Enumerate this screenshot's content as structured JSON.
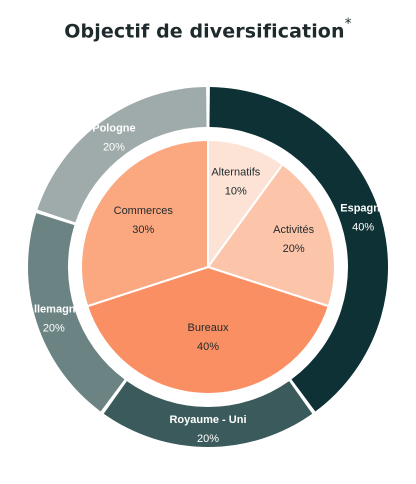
{
  "chart_data": [
    {
      "type": "pie",
      "title": "Objectif de diversification",
      "title_mark": "*",
      "ring": "outer",
      "slices": [
        {
          "label": "Espagne",
          "value": 40,
          "value_label": "40%",
          "color": "#0d3134",
          "text_color": "#ffffff"
        },
        {
          "label": "Royaume - Uni",
          "value": 20,
          "value_label": "20%",
          "color": "#3b5a5b",
          "text_color": "#ffffff"
        },
        {
          "label": "Allemagne",
          "value": 20,
          "value_label": "20%",
          "color": "#6c8384",
          "text_color": "#ffffff"
        },
        {
          "label": "Pologne",
          "value": 20,
          "value_label": "20%",
          "color": "#9eabaa",
          "text_color": "#ffffff"
        }
      ]
    },
    {
      "type": "pie",
      "ring": "inner",
      "slices": [
        {
          "label": "Alternatifs",
          "value": 10,
          "value_label": "10%",
          "color": "#fde2d6",
          "text_color": "#1f2a2c"
        },
        {
          "label": "Activités",
          "value": 20,
          "value_label": "20%",
          "color": "#fcc4a8",
          "text_color": "#1f2a2c"
        },
        {
          "label": "Bureaux",
          "value": 40,
          "value_label": "40%",
          "color": "#f98f63",
          "text_color": "#1f2a2c"
        },
        {
          "label": "Commerces",
          "value": 30,
          "value_label": "30%",
          "color": "#fba77f",
          "text_color": "#1f2a2c"
        }
      ]
    }
  ]
}
